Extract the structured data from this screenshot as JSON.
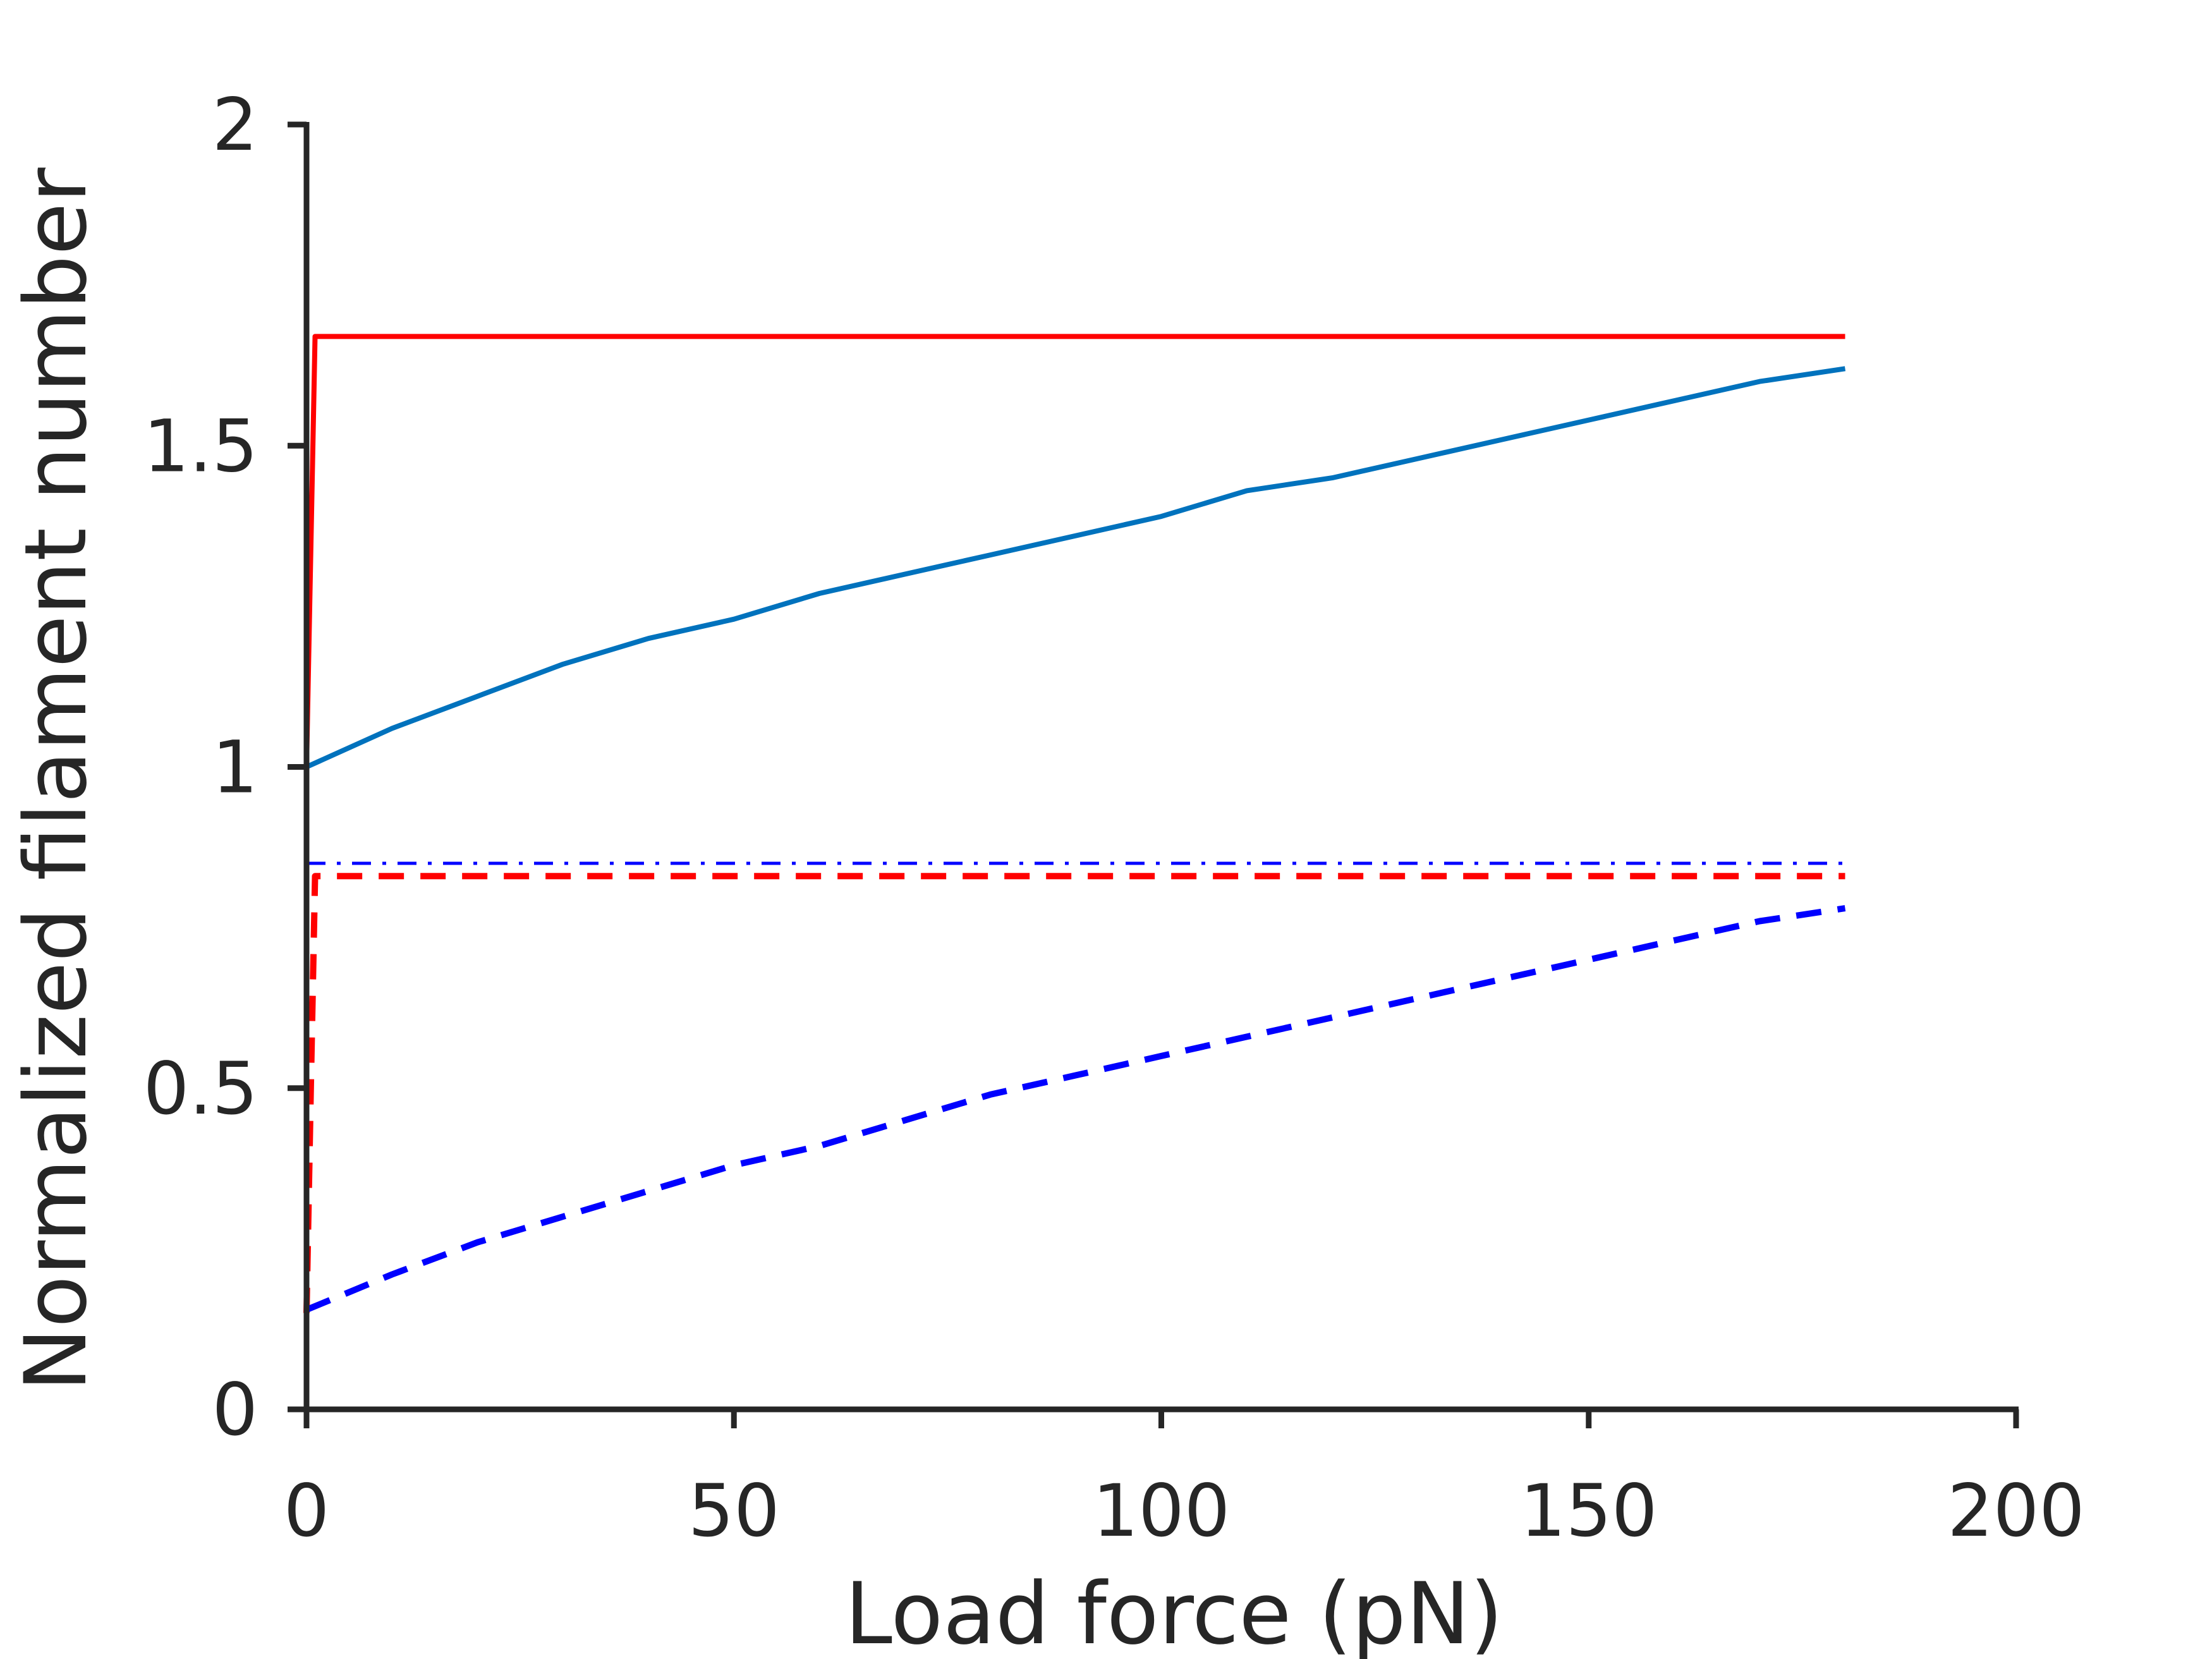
{
  "chart_data": {
    "type": "line",
    "xlabel": "Load force (pN)",
    "ylabel": "Normalized filament number",
    "xlim": [
      0,
      200
    ],
    "ylim": [
      0,
      2
    ],
    "xticks": [
      {
        "value": 0,
        "label": "0"
      },
      {
        "value": 50,
        "label": "50"
      },
      {
        "value": 100,
        "label": "100"
      },
      {
        "value": 150,
        "label": "150"
      },
      {
        "value": 200,
        "label": "200"
      }
    ],
    "yticks": [
      {
        "value": 0,
        "label": "0"
      },
      {
        "value": 0.5,
        "label": "0.5"
      },
      {
        "value": 1,
        "label": "1"
      },
      {
        "value": 1.5,
        "label": "1.5"
      },
      {
        "value": 2,
        "label": "2"
      }
    ],
    "grid": false,
    "legend": "none",
    "series": [
      {
        "color": "#ff0000",
        "style": "solid",
        "x": [
          0,
          1,
          180
        ],
        "y": [
          1.0,
          1.67,
          1.67
        ]
      },
      {
        "color": "#0072bd",
        "style": "solid",
        "x": [
          0,
          10,
          20,
          30,
          40,
          50,
          60,
          70,
          80,
          90,
          100,
          110,
          120,
          130,
          140,
          150,
          160,
          170,
          180
        ],
        "y": [
          1.0,
          1.06,
          1.11,
          1.16,
          1.2,
          1.23,
          1.27,
          1.3,
          1.33,
          1.36,
          1.39,
          1.43,
          1.45,
          1.48,
          1.51,
          1.54,
          1.57,
          1.6,
          1.62
        ]
      },
      {
        "color": "#ff0000",
        "style": "dashdot",
        "x": [
          0,
          180
        ],
        "y": [
          0.85,
          0.85
        ]
      },
      {
        "color": "#0000ff",
        "style": "dashdot",
        "x": [
          0,
          180
        ],
        "y": [
          0.85,
          0.85
        ]
      },
      {
        "color": "#ff0000",
        "style": "dashed",
        "x": [
          0,
          0.5,
          1,
          180
        ],
        "y": [
          0.15,
          0.5,
          0.83,
          0.83
        ]
      },
      {
        "color": "#0000ff",
        "style": "dashed",
        "x": [
          0,
          10,
          20,
          30,
          40,
          50,
          60,
          70,
          80,
          90,
          100,
          110,
          120,
          130,
          140,
          150,
          160,
          170,
          180
        ],
        "y": [
          0.155,
          0.21,
          0.26,
          0.3,
          0.34,
          0.38,
          0.41,
          0.45,
          0.49,
          0.52,
          0.55,
          0.58,
          0.61,
          0.64,
          0.67,
          0.7,
          0.73,
          0.76,
          0.78
        ]
      }
    ]
  }
}
